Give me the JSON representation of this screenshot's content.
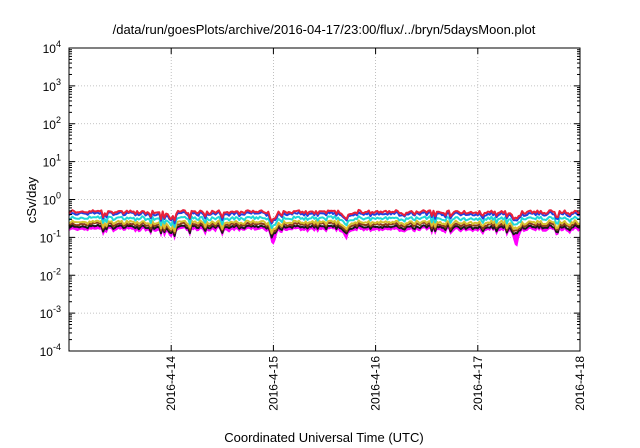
{
  "chart_data": {
    "type": "area",
    "title": "/data/run/goesPlots/archive/2016-04-17/23:00/flux/../bryn/5daysMoon.plot",
    "xlabel": "Coordinated Universal Time (UTC)",
    "ylabel": "cSv/day",
    "yscale": "log",
    "ylim": [
      0.0001,
      10000
    ],
    "y_ticks": [
      {
        "base": "10",
        "exp": "-4"
      },
      {
        "base": "10",
        "exp": "-3"
      },
      {
        "base": "10",
        "exp": "-2"
      },
      {
        "base": "10",
        "exp": "-1"
      },
      {
        "base": "10",
        "exp": "0"
      },
      {
        "base": "10",
        "exp": "1"
      },
      {
        "base": "10",
        "exp": "2"
      },
      {
        "base": "10",
        "exp": "3"
      },
      {
        "base": "10",
        "exp": "4"
      }
    ],
    "xlim": [
      "2016-04-13T00:00",
      "2016-04-18T00:00"
    ],
    "x_ticks": [
      "2016-4-14",
      "2016-4-15",
      "2016-4-16",
      "2016-4-17",
      "2016-4-18"
    ],
    "grid": true,
    "legend": "none",
    "colors": {
      "magenta_band": "#ff00ff",
      "red": "#e8203a",
      "blue": "#1f3fe0",
      "cyan": "#20d8d8",
      "yellow": "#d8c030",
      "brown": "#8b3a1a",
      "black": "#1a1a1a",
      "grid": "#b0b0b0"
    },
    "series_approx_levels": [
      {
        "color": "red",
        "typical": 0.47,
        "dips_to": 0.25
      },
      {
        "color": "blue",
        "typical": 0.42,
        "dips_to": 0.22
      },
      {
        "color": "cyan",
        "typical": 0.32,
        "dips_to": 0.18
      },
      {
        "color": "yellow",
        "typical": 0.25,
        "dips_to": 0.14
      },
      {
        "color": "brown",
        "typical": 0.22,
        "dips_to": 0.12
      },
      {
        "color": "black",
        "typical": 0.19,
        "dips_to": 0.11
      },
      {
        "color": "magenta_band",
        "typical": 0.16,
        "dips_to": 0.06
      }
    ],
    "notable_dips": [
      {
        "x": "2016-04-14T00:00",
        "magenta_min": 0.11
      },
      {
        "x": "2016-04-15T00:00",
        "magenta_min": 0.07
      },
      {
        "x": "2016-04-15T17:00",
        "magenta_min": 0.09
      },
      {
        "x": "2016-04-17T09:00",
        "magenta_min": 0.05
      }
    ]
  }
}
